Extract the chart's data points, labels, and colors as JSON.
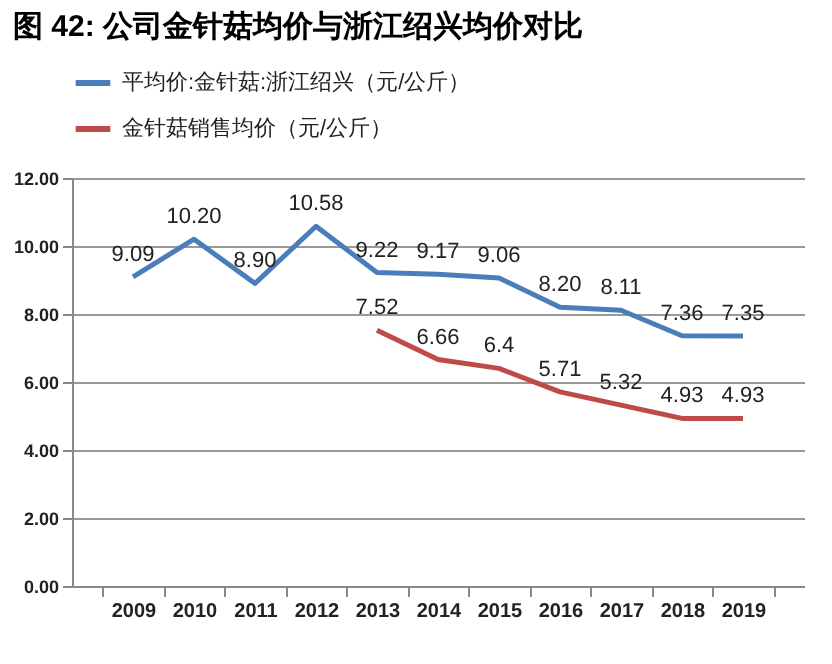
{
  "chart_data": {
    "type": "line",
    "title": "图 42: 公司金针菇均价与浙江绍兴均价对比",
    "categories": [
      "2009",
      "2010",
      "2011",
      "2012",
      "2013",
      "2014",
      "2015",
      "2016",
      "2017",
      "2018",
      "2019"
    ],
    "series": [
      {
        "name": "平均价:金针菇:浙江绍兴（元/公斤）",
        "color": "#4a7ebb",
        "values": [
          9.09,
          10.2,
          8.9,
          10.58,
          9.22,
          9.17,
          9.06,
          8.2,
          8.11,
          7.36,
          7.35
        ],
        "value_labels": [
          "9.09",
          "10.20",
          "8.90",
          "10.58",
          "9.22",
          "9.17",
          "9.06",
          "8.20",
          "8.11",
          "7.36",
          "7.35"
        ]
      },
      {
        "name": "金针菇销售均价（元/公斤）",
        "color": "#be4b48",
        "values": [
          null,
          null,
          null,
          null,
          7.52,
          6.66,
          6.4,
          5.71,
          5.32,
          4.93,
          4.93
        ],
        "value_labels": [
          null,
          null,
          null,
          null,
          "7.52",
          "6.66",
          "6.4",
          "5.71",
          "5.32",
          "4.93",
          "4.93"
        ]
      }
    ],
    "ylim": [
      0,
      12
    ],
    "yticks": [
      {
        "value": 0,
        "label": "0.00"
      },
      {
        "value": 2,
        "label": "2.00"
      },
      {
        "value": 4,
        "label": "4.00"
      },
      {
        "value": 6,
        "label": "6.00"
      },
      {
        "value": 8,
        "label": "8.00"
      },
      {
        "value": 10,
        "label": "10.00"
      },
      {
        "value": 12,
        "label": "12.00"
      }
    ],
    "grid": "y",
    "legend": "top",
    "marker": "none",
    "line_style": "solid"
  }
}
